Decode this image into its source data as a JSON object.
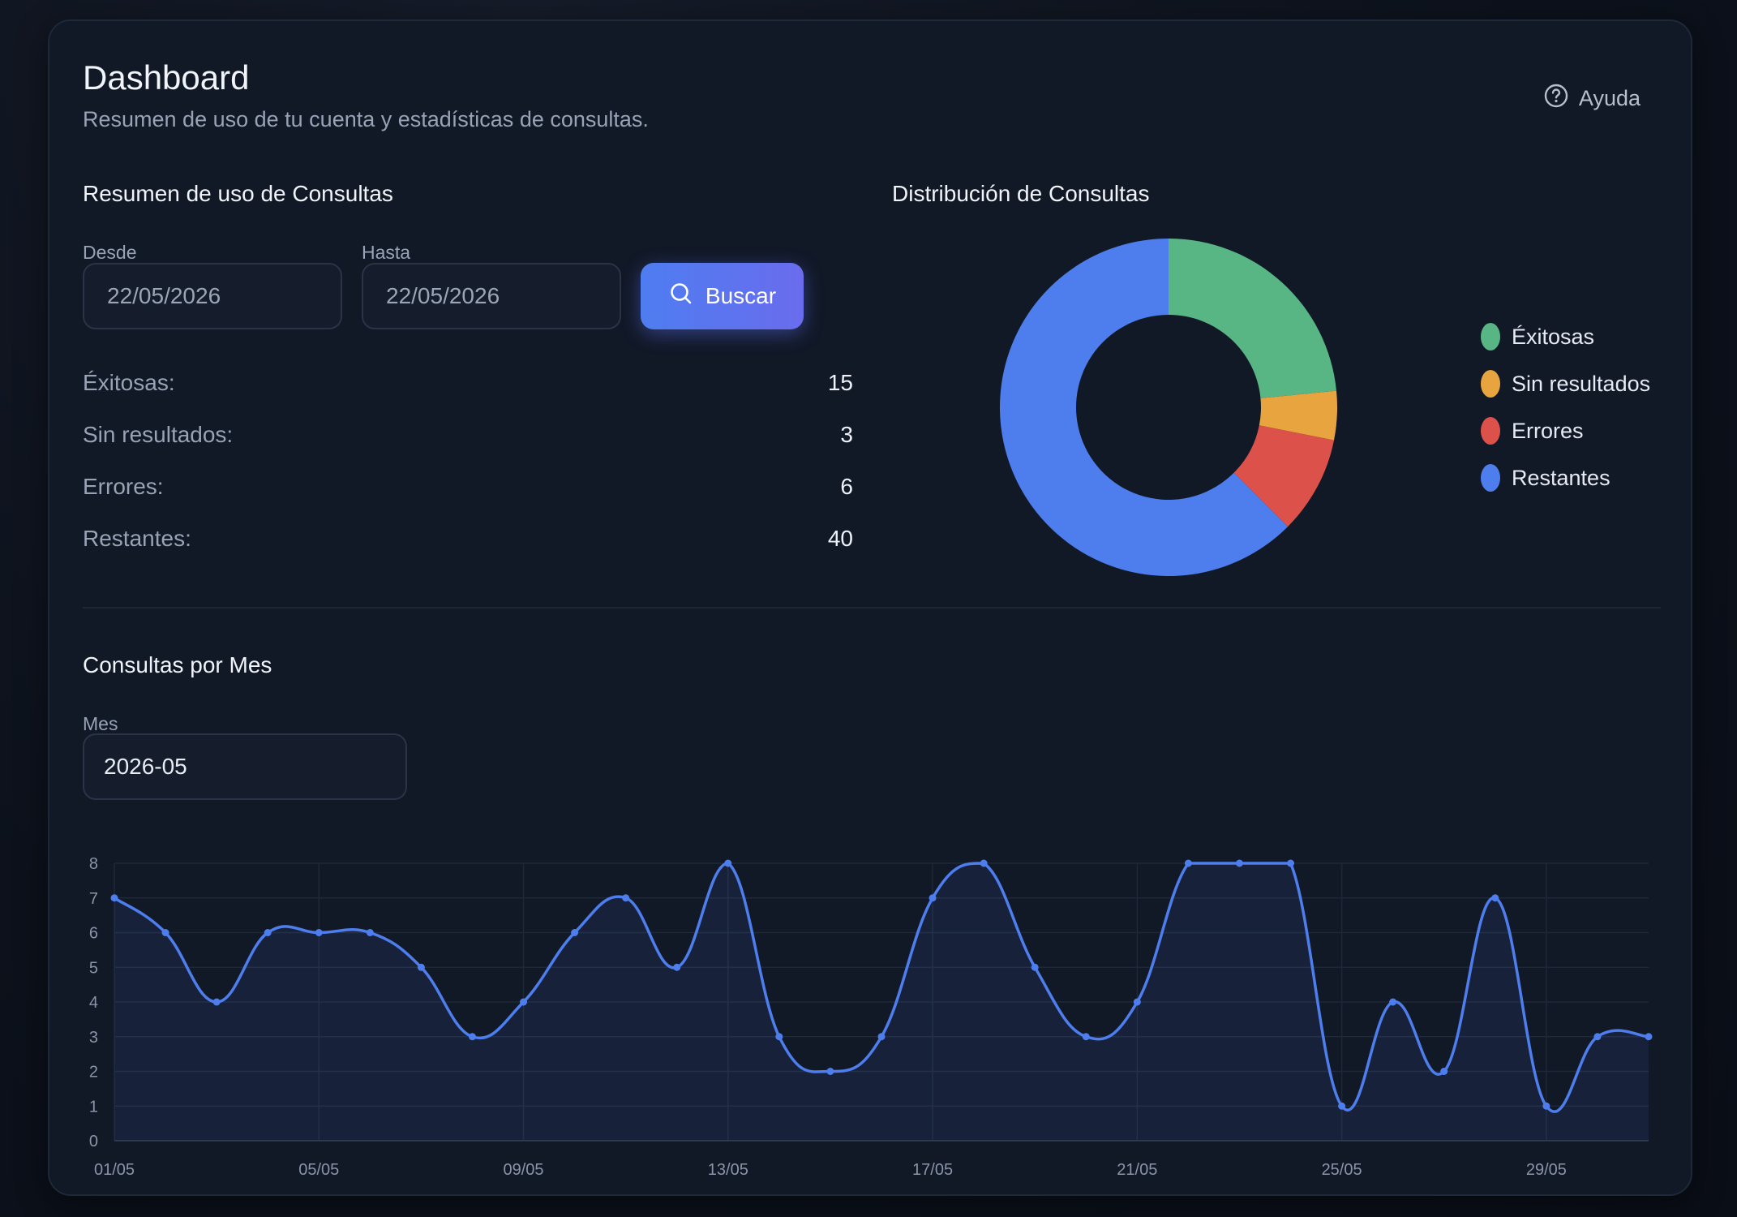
{
  "header": {
    "title": "Dashboard",
    "subtitle": "Resumen de uso de tu cuenta y estadísticas de consultas.",
    "help_label": "Ayuda"
  },
  "usage": {
    "title": "Resumen de uso de Consultas",
    "from_label": "Desde",
    "from_value": "22/05/2026",
    "to_label": "Hasta",
    "to_value": "22/05/2026",
    "search_button": "Buscar",
    "stats": [
      {
        "label": "Éxitosas:",
        "value": "15"
      },
      {
        "label": "Sin resultados:",
        "value": "3"
      },
      {
        "label": "Errores:",
        "value": "6"
      },
      {
        "label": "Restantes:",
        "value": "40"
      }
    ]
  },
  "distribution": {
    "title": "Distribución de Consultas",
    "legend": [
      {
        "label": "Éxitosas",
        "color": "#58b584"
      },
      {
        "label": "Sin resultados",
        "color": "#e8a43f"
      },
      {
        "label": "Errores",
        "color": "#dc524b"
      },
      {
        "label": "Restantes",
        "color": "#4e7eed"
      }
    ]
  },
  "monthly": {
    "title": "Consultas por Mes",
    "month_label": "Mes",
    "month_value": "2026-05"
  },
  "chart_data": [
    {
      "type": "pie",
      "title": "Distribución de Consultas",
      "categories": [
        "Éxitosas",
        "Sin resultados",
        "Errores",
        "Restantes"
      ],
      "values": [
        15,
        3,
        6,
        40
      ],
      "colors": [
        "#58b584",
        "#e8a43f",
        "#dc524b",
        "#4e7eed"
      ],
      "legend": "right"
    },
    {
      "type": "area",
      "title": "Consultas por Mes",
      "x": [
        "01/05",
        "02/05",
        "03/05",
        "04/05",
        "05/05",
        "06/05",
        "07/05",
        "08/05",
        "09/05",
        "10/05",
        "11/05",
        "12/05",
        "13/05",
        "14/05",
        "15/05",
        "16/05",
        "17/05",
        "18/05",
        "19/05",
        "20/05",
        "21/05",
        "22/05",
        "23/05",
        "24/05",
        "25/05",
        "26/05",
        "27/05",
        "28/05",
        "29/05",
        "30/05",
        "31/05"
      ],
      "xticks": [
        "01/05",
        "05/05",
        "09/05",
        "13/05",
        "17/05",
        "21/05",
        "25/05",
        "29/05"
      ],
      "values": [
        7,
        6,
        4,
        6,
        6,
        6,
        5,
        3,
        4,
        6,
        7,
        5,
        8,
        3,
        2,
        3,
        7,
        8,
        5,
        3,
        4,
        8,
        8,
        8,
        1,
        4,
        2,
        7,
        1,
        3,
        3
      ],
      "yticks": [
        0,
        1,
        2,
        3,
        4,
        5,
        6,
        7,
        8
      ],
      "ylim": [
        0,
        8
      ],
      "color": "#4e7eed",
      "grid": true
    }
  ]
}
